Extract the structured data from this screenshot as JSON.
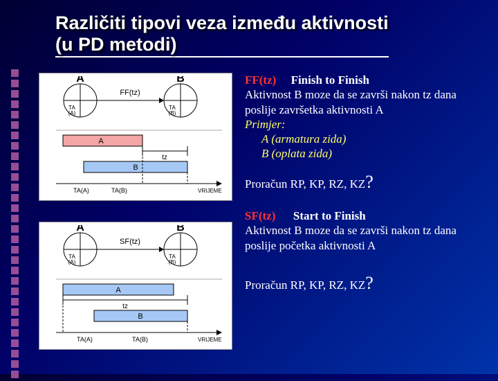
{
  "title_line1": "Različiti tipovi veza između aktivnosti",
  "title_line2": "(u PD metodi)",
  "ff": {
    "code": "FF(tz)",
    "name": "Finish to Finish",
    "desc": "Aktivnost B moze da se završi nakon tz dana poslije završetka aktivnosti A",
    "example_label": "Primjer:",
    "example_a": "A (armatura zida)",
    "example_b": "B (oplata zida)",
    "calc": "Proračun RP, KP, RZ, KZ",
    "q": "?",
    "diagram": {
      "node_a": "A",
      "node_b": "B",
      "ta_a": "TA\n(A)",
      "ta_b": "TA\n(B)",
      "link_label": "FF(tz)",
      "bar_a_label": "A",
      "bar_b_label": "B",
      "tz_label": "tz",
      "x_label_a": "TA(A)",
      "x_label_b": "TA(B)",
      "x_axis": "VRIJEME",
      "bar_a_color": "#f4a6a6",
      "bar_b_color": "#a6c8f4",
      "bg": "#ffffff",
      "stroke": "#000000"
    }
  },
  "sf": {
    "code": "SF(tz)",
    "name": "Start to Finish",
    "desc": "Aktivnost B moze da se završi nakon tz dana poslije početka aktivnosti A",
    "calc": "Proračun RP, KP, RZ, KZ",
    "q": "?",
    "diagram": {
      "node_a": "A",
      "node_b": "B",
      "ta_a": "TA\n(A)",
      "ta_b": "TA\n(B)",
      "link_label": "SF(tz)",
      "bar_a_label": "A",
      "bar_b_label": "B",
      "tz_label": "tz",
      "x_label_a": "TA(A)",
      "x_label_b": "TA(B)",
      "x_axis": "VRIJEME",
      "bar_a_color": "#a6c8f4",
      "bar_b_color": "#a6c8f4",
      "bg": "#ffffff",
      "stroke": "#000000"
    }
  },
  "bullet_count": 30
}
